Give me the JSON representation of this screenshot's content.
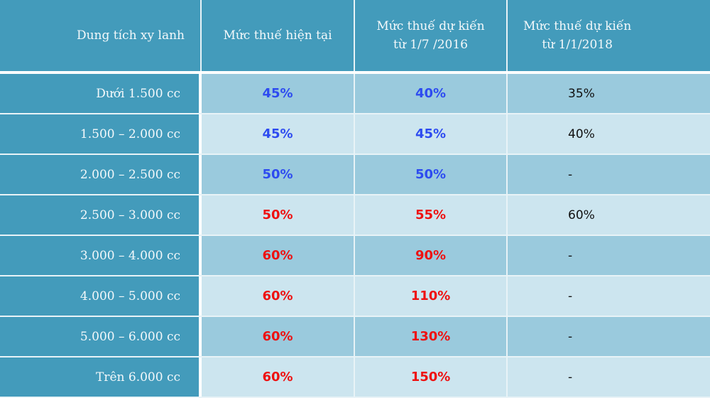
{
  "colors": {
    "header_bg": "#439bbb",
    "row_odd_bg": "#9acadd",
    "row_even_bg": "#cce5ef",
    "blue_value": "#2d4bf0",
    "red_value": "#ee1111"
  },
  "header": {
    "col0": "Dung tích xy lanh",
    "col1": "Mức thuế hiện tại",
    "col2_line1": "Mức thuế dự kiến",
    "col2_line2": "từ 1/7 /2016",
    "col3_line1": "Mức thuế dự kiến",
    "col3_line2": "từ 1/1/2018"
  },
  "rows": [
    {
      "capacity": "Dưới 1.500 cc",
      "current": "45%",
      "current_color": "blue",
      "from_2016": "40%",
      "from_2016_color": "blue",
      "from_2018": "35%"
    },
    {
      "capacity": "1.500 – 2.000 cc",
      "current": "45%",
      "current_color": "blue",
      "from_2016": "45%",
      "from_2016_color": "blue",
      "from_2018": "40%"
    },
    {
      "capacity": "2.000 – 2.500 cc",
      "current": "50%",
      "current_color": "blue",
      "from_2016": "50%",
      "from_2016_color": "blue",
      "from_2018": "-"
    },
    {
      "capacity": "2.500 – 3.000 cc",
      "current": "50%",
      "current_color": "red",
      "from_2016": "55%",
      "from_2016_color": "red",
      "from_2018": "60%"
    },
    {
      "capacity": "3.000 – 4.000 cc",
      "current": "60%",
      "current_color": "red",
      "from_2016": "90%",
      "from_2016_color": "red",
      "from_2018": "-"
    },
    {
      "capacity": "4.000 – 5.000 cc",
      "current": "60%",
      "current_color": "red",
      "from_2016": "110%",
      "from_2016_color": "red",
      "from_2018": "-"
    },
    {
      "capacity": "5.000 – 6.000 cc",
      "current": "60%",
      "current_color": "red",
      "from_2016": "130%",
      "from_2016_color": "red",
      "from_2018": "-"
    },
    {
      "capacity": "Trên 6.000 cc",
      "current": "60%",
      "current_color": "red",
      "from_2016": "150%",
      "from_2016_color": "red",
      "from_2018": "-"
    }
  ]
}
